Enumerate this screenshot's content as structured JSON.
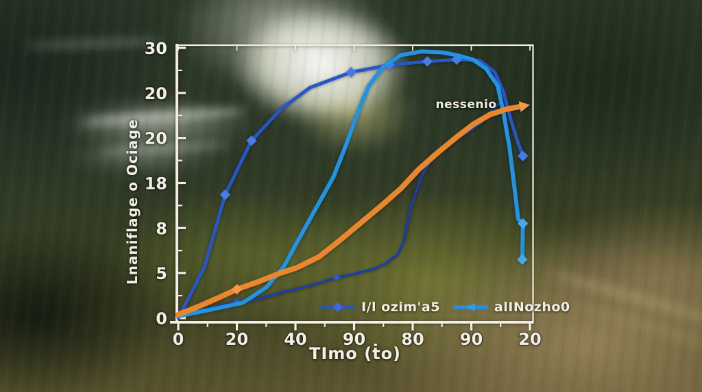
{
  "figure": {
    "description": "line chart overlaid on motion-blurred forest photo"
  },
  "axes": {
    "x": {
      "label": "TImo (ṫo)",
      "tick_labels": [
        "0",
        "20",
        "40",
        "90",
        "80",
        "90",
        "20"
      ]
    },
    "y": {
      "label": "Lnaniflage o Ociage",
      "tick_labels": [
        "30",
        "20",
        "20",
        "18",
        "8",
        "5",
        "0"
      ]
    }
  },
  "annotation": {
    "text": "nessenio"
  },
  "legend": {
    "position": "inside bottom-right",
    "entries": [
      {
        "label": "I/l ozim'a5",
        "series": "royal",
        "marker": "diamond"
      },
      {
        "label": "alINozho0",
        "series": "azure",
        "marker": "arrow"
      }
    ]
  },
  "colors": {
    "axis": "#f1eee3",
    "text": "#f2efe4",
    "royal": "#2756c6",
    "azure": "#2293e0",
    "navy": "#1c3da8",
    "orange": "#e9872f"
  },
  "chart_data": {
    "type": "line",
    "title": "",
    "xlabel": "TImo (ṫo)",
    "ylabel": "Lnaniflage o Ociage",
    "x_range": [
      0,
      120
    ],
    "y_range": [
      0,
      30
    ],
    "grid": false,
    "legend_position": "inside bottom-right",
    "series": [
      {
        "id": "navy",
        "name": "",
        "color": "#1c3da8",
        "marker_color": "#3558c9",
        "width": 3.5,
        "marker_size": 4,
        "markers_at": [
          2,
          6,
          14
        ],
        "arrow_end": false,
        "points": [
          [
            0,
            0.2
          ],
          [
            9,
            1.0
          ],
          [
            20,
            1.8
          ],
          [
            28,
            2.2
          ],
          [
            37,
            3.0
          ],
          [
            45,
            3.6
          ],
          [
            54,
            4.5
          ],
          [
            60,
            4.9
          ],
          [
            67,
            5.5
          ],
          [
            71,
            6.1
          ],
          [
            75,
            7.1
          ],
          [
            77,
            8.6
          ],
          [
            79.5,
            12.5
          ],
          [
            83,
            15.7
          ],
          [
            87,
            18.0
          ],
          [
            91,
            19.2
          ],
          [
            95,
            20.0
          ],
          [
            99,
            20.7
          ],
          [
            103,
            21.6
          ],
          [
            106,
            22.7
          ],
          [
            109.4,
            23.8
          ]
        ]
      },
      {
        "id": "royal",
        "name": "I/l ozim'a5",
        "color": "#2756c6",
        "marker_color": "#4a79e8",
        "width": 5,
        "marker_size": 5.5,
        "markers_at": [
          2,
          3,
          6,
          7,
          8,
          9,
          15
        ],
        "arrow_end": false,
        "points": [
          [
            0,
            0
          ],
          [
            9,
            5.7
          ],
          [
            16,
            13.7
          ],
          [
            25,
            19.7
          ],
          [
            35,
            23.2
          ],
          [
            45,
            25.6
          ],
          [
            59,
            27.3
          ],
          [
            72,
            28.1
          ],
          [
            85,
            28.5
          ],
          [
            95,
            28.7
          ],
          [
            103,
            28.6
          ],
          [
            108,
            27.3
          ],
          [
            111,
            25.1
          ],
          [
            113.5,
            22.0
          ],
          [
            116,
            19.4
          ],
          [
            117.6,
            18.0
          ]
        ]
      },
      {
        "id": "azure",
        "name": "alINozho0",
        "color": "#2293e0",
        "marker_color": "#49a8ec",
        "width": 6,
        "marker_size": 5.5,
        "markers_at": [
          23,
          24
        ],
        "arrow_end": false,
        "points": [
          [
            0,
            0.2
          ],
          [
            12,
            1.0
          ],
          [
            22,
            1.7
          ],
          [
            30,
            3.4
          ],
          [
            36,
            5.7
          ],
          [
            41,
            8.7
          ],
          [
            47,
            12.2
          ],
          [
            53,
            15.7
          ],
          [
            57,
            19.0
          ],
          [
            61,
            22.6
          ],
          [
            65,
            25.8
          ],
          [
            70,
            27.9
          ],
          [
            76,
            29.2
          ],
          [
            83,
            29.6
          ],
          [
            90,
            29.5
          ],
          [
            95,
            29.2
          ],
          [
            100.6,
            28.7
          ],
          [
            105,
            27.7
          ],
          [
            109,
            25.8
          ],
          [
            111,
            22.8
          ],
          [
            113,
            19.0
          ],
          [
            114.6,
            14.8
          ],
          [
            116,
            11.0
          ],
          [
            117.6,
            10.5
          ],
          [
            117.4,
            6.5
          ]
        ]
      },
      {
        "id": "orange",
        "name": "",
        "color": "#e9872f",
        "marker_color": "#f59a43",
        "width": 8,
        "marker_size": 5.5,
        "markers_at": [
          3
        ],
        "arrow_end": true,
        "points": [
          [
            0,
            0.4
          ],
          [
            7,
            1.3
          ],
          [
            14,
            2.3
          ],
          [
            20,
            3.2
          ],
          [
            27,
            4.0
          ],
          [
            34,
            4.9
          ],
          [
            40.5,
            5.6
          ],
          [
            48,
            6.8
          ],
          [
            55,
            8.6
          ],
          [
            62,
            10.5
          ],
          [
            69,
            12.4
          ],
          [
            76,
            14.4
          ],
          [
            82,
            16.5
          ],
          [
            89,
            18.5
          ],
          [
            95,
            20.1
          ],
          [
            100.6,
            21.5
          ],
          [
            106.4,
            22.6
          ],
          [
            112,
            23.2
          ],
          [
            117,
            23.5
          ]
        ]
      }
    ]
  }
}
